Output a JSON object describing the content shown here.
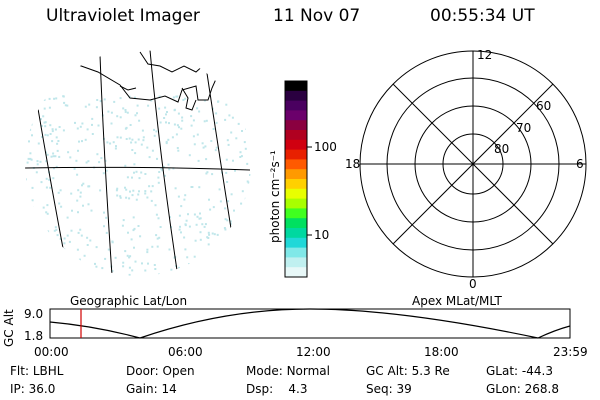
{
  "header": {
    "title": "Ultraviolet Imager",
    "date": "11 Nov 07",
    "time": "00:55:34 UT"
  },
  "colorbar": {
    "unit_label": "photon cm⁻²s⁻¹",
    "ticks": [
      "100",
      "10"
    ],
    "colors": [
      "#000000",
      "#2a0040",
      "#4a0060",
      "#6b006b",
      "#8a0040",
      "#b00020",
      "#d00010",
      "#e82000",
      "#ff5a00",
      "#ff9a00",
      "#ffd000",
      "#e8ff00",
      "#a8ff00",
      "#40ff20",
      "#00e060",
      "#00d8a0",
      "#20d8d8",
      "#80e8e8",
      "#c0f0f0",
      "#e8f8f8"
    ]
  },
  "geo_panel": {
    "label": "Geographic Lat/Lon",
    "dot_color": "#bfe6ea"
  },
  "polar_panel": {
    "label": "Apex MLat/MLT",
    "mlt_labels": [
      "12",
      "18",
      "6",
      "0"
    ],
    "lat_labels": [
      "60",
      "70",
      "80"
    ]
  },
  "altitude_strip": {
    "axis_label": "GC Alt",
    "y_ticks": [
      "9.0",
      "1.8"
    ],
    "x_ticks": [
      "00:00",
      "06:00",
      "12:00",
      "18:00",
      "23:59"
    ],
    "marker_color": "#d00000"
  },
  "info": {
    "flt_label": "Flt:",
    "flt_value": "LBHL",
    "ip_label": "IP:",
    "ip_value": "36.0",
    "door_label": "Door:",
    "door_value": "Open",
    "gain_label": "Gain:",
    "gain_value": "14",
    "mode_label": "Mode:",
    "mode_value": "Normal",
    "dsp_label": "Dsp:",
    "dsp_value": "4.3",
    "gcalt_label": "GC Alt:",
    "gcalt_value": "5.3 Re",
    "seq_label": "Seq:",
    "seq_value": "39",
    "glat_label": "GLat:",
    "glat_value": "-44.3",
    "glon_label": "GLon:",
    "glon_value": "268.8"
  }
}
